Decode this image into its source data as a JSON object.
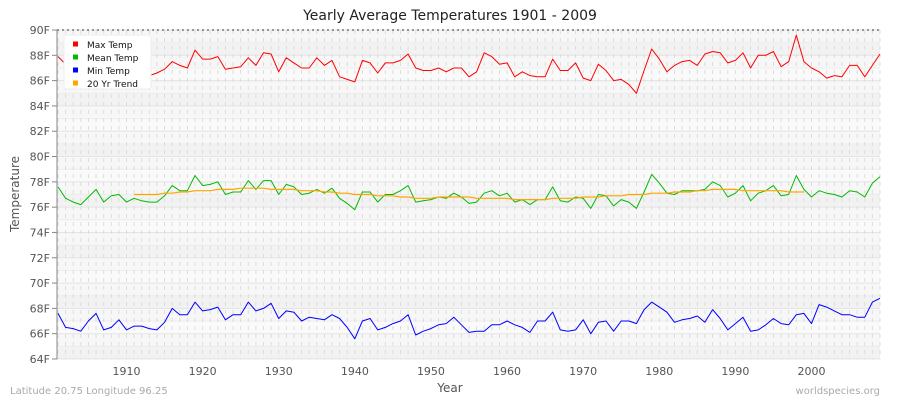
{
  "chart_data": {
    "type": "line",
    "title": "Yearly Average Temperatures 1901 - 2009",
    "xlabel": "Year",
    "ylabel": "Temperature",
    "xlim": [
      1901,
      2009
    ],
    "ylim": [
      64,
      90
    ],
    "x_ticks": [
      "1910",
      "1920",
      "1930",
      "1940",
      "1950",
      "1960",
      "1970",
      "1980",
      "1990",
      "2000"
    ],
    "y_ticks": [
      "64F",
      "66F",
      "68F",
      "70F",
      "72F",
      "74F",
      "76F",
      "78F",
      "80F",
      "82F",
      "84F",
      "86F",
      "88F",
      "90F"
    ],
    "grid": true,
    "legend_position": "top-left",
    "series": [
      {
        "name": "Max Temp",
        "color": "#ff0000",
        "start_year": 1901,
        "values": [
          87.9,
          87.3,
          87.0,
          86.8,
          87.2,
          86.9,
          87.1,
          86.7,
          86.9,
          86.5,
          86.2,
          86.3,
          86.4,
          86.6,
          86.9,
          87.5,
          87.2,
          87.0,
          88.4,
          87.7,
          87.7,
          87.9,
          86.9,
          87.0,
          87.1,
          87.8,
          87.2,
          88.2,
          88.1,
          86.7,
          87.8,
          87.4,
          87.0,
          87.0,
          87.8,
          87.2,
          87.6,
          86.3,
          86.1,
          85.9,
          87.6,
          87.4,
          86.6,
          87.4,
          87.4,
          87.6,
          88.1,
          87.0,
          86.8,
          86.8,
          87.0,
          86.7,
          87.0,
          87.0,
          86.3,
          86.7,
          88.2,
          87.9,
          87.3,
          87.4,
          86.3,
          86.7,
          86.4,
          86.3,
          86.3,
          87.7,
          86.8,
          86.8,
          87.4,
          86.2,
          86.0,
          87.3,
          86.8,
          86.0,
          86.1,
          85.7,
          85.0,
          86.8,
          88.5,
          87.7,
          86.7,
          87.2,
          87.5,
          87.6,
          87.2,
          88.1,
          88.3,
          88.2,
          87.4,
          87.6,
          88.2,
          87.0,
          88.0,
          88.0,
          88.3,
          87.1,
          87.5,
          89.6,
          87.5,
          87.0,
          86.7,
          86.2,
          86.4,
          86.3,
          87.2,
          87.2,
          86.3,
          87.2,
          88.1
        ]
      },
      {
        "name": "Mean Temp",
        "color": "#00bb00",
        "start_year": 1901,
        "values": [
          77.6,
          76.7,
          76.4,
          76.2,
          76.8,
          77.4,
          76.4,
          76.9,
          77.0,
          76.4,
          76.7,
          76.5,
          76.4,
          76.4,
          76.9,
          77.7,
          77.3,
          77.3,
          78.5,
          77.7,
          77.8,
          78.0,
          77.0,
          77.2,
          77.2,
          78.1,
          77.4,
          78.1,
          78.1,
          77.0,
          77.8,
          77.6,
          77.0,
          77.1,
          77.4,
          77.1,
          77.5,
          76.7,
          76.3,
          75.8,
          77.2,
          77.2,
          76.4,
          77.0,
          77.0,
          77.3,
          77.7,
          76.4,
          76.5,
          76.6,
          76.8,
          76.7,
          77.1,
          76.8,
          76.3,
          76.4,
          77.1,
          77.3,
          76.9,
          77.1,
          76.4,
          76.6,
          76.2,
          76.6,
          76.6,
          77.6,
          76.5,
          76.4,
          76.8,
          76.7,
          75.9,
          77.0,
          76.9,
          76.1,
          76.6,
          76.4,
          75.9,
          77.2,
          78.6,
          77.9,
          77.1,
          77.0,
          77.3,
          77.3,
          77.3,
          77.4,
          78.0,
          77.7,
          76.8,
          77.1,
          77.7,
          76.5,
          77.1,
          77.3,
          77.7,
          76.9,
          77.0,
          78.5,
          77.4,
          76.8,
          77.3,
          77.1,
          77.0,
          76.8,
          77.3,
          77.2,
          76.8,
          77.9,
          78.4
        ]
      },
      {
        "name": "Min Temp",
        "color": "#0000ff",
        "start_year": 1901,
        "values": [
          67.6,
          66.5,
          66.4,
          66.2,
          67.0,
          67.6,
          66.3,
          66.5,
          67.1,
          66.3,
          66.6,
          66.6,
          66.4,
          66.3,
          66.9,
          68.0,
          67.5,
          67.5,
          68.5,
          67.8,
          67.9,
          68.1,
          67.1,
          67.5,
          67.5,
          68.5,
          67.8,
          68.0,
          68.4,
          67.2,
          67.8,
          67.7,
          67.0,
          67.3,
          67.2,
          67.1,
          67.5,
          67.2,
          66.5,
          65.6,
          67.0,
          67.2,
          66.3,
          66.5,
          66.8,
          67.0,
          67.5,
          65.9,
          66.2,
          66.4,
          66.7,
          66.8,
          67.3,
          66.7,
          66.1,
          66.2,
          66.2,
          66.7,
          66.7,
          67.0,
          66.7,
          66.5,
          66.1,
          67.0,
          67.0,
          67.7,
          66.3,
          66.2,
          66.3,
          67.1,
          66.0,
          66.9,
          67.0,
          66.2,
          67.0,
          67.0,
          66.8,
          67.9,
          68.5,
          68.1,
          67.7,
          66.9,
          67.1,
          67.2,
          67.4,
          66.9,
          67.9,
          67.2,
          66.3,
          66.8,
          67.3,
          66.2,
          66.3,
          66.7,
          67.2,
          66.8,
          66.7,
          67.5,
          67.6,
          66.8,
          68.3,
          68.1,
          67.8,
          67.5,
          67.5,
          67.3,
          67.3,
          68.5,
          68.8
        ]
      },
      {
        "name": "20 Yr Trend",
        "color": "#ffa500",
        "start_year": 1911,
        "values": [
          77.0,
          77.0,
          77.0,
          77.0,
          77.1,
          77.1,
          77.2,
          77.2,
          77.3,
          77.3,
          77.3,
          77.4,
          77.4,
          77.4,
          77.5,
          77.5,
          77.5,
          77.5,
          77.4,
          77.4,
          77.4,
          77.4,
          77.3,
          77.3,
          77.3,
          77.2,
          77.2,
          77.1,
          77.1,
          77.0,
          77.0,
          77.0,
          76.9,
          76.9,
          76.9,
          76.8,
          76.8,
          76.7,
          76.7,
          76.7,
          76.8,
          76.8,
          76.8,
          76.8,
          76.8,
          76.7,
          76.7,
          76.7,
          76.7,
          76.7,
          76.6,
          76.6,
          76.6,
          76.6,
          76.6,
          76.7,
          76.7,
          76.7,
          76.7,
          76.8,
          76.8,
          76.8,
          76.9,
          76.9,
          76.9,
          77.0,
          77.0,
          77.0,
          77.1,
          77.1,
          77.1,
          77.2,
          77.2,
          77.2,
          77.3,
          77.3,
          77.4,
          77.4,
          77.4,
          77.4,
          77.3,
          77.3,
          77.3,
          77.3,
          77.3,
          77.3,
          77.2,
          77.2,
          77.2
        ]
      }
    ]
  },
  "footer": {
    "location": "Latitude 20.75 Longitude 96.25",
    "source": "worldspecies.org"
  }
}
